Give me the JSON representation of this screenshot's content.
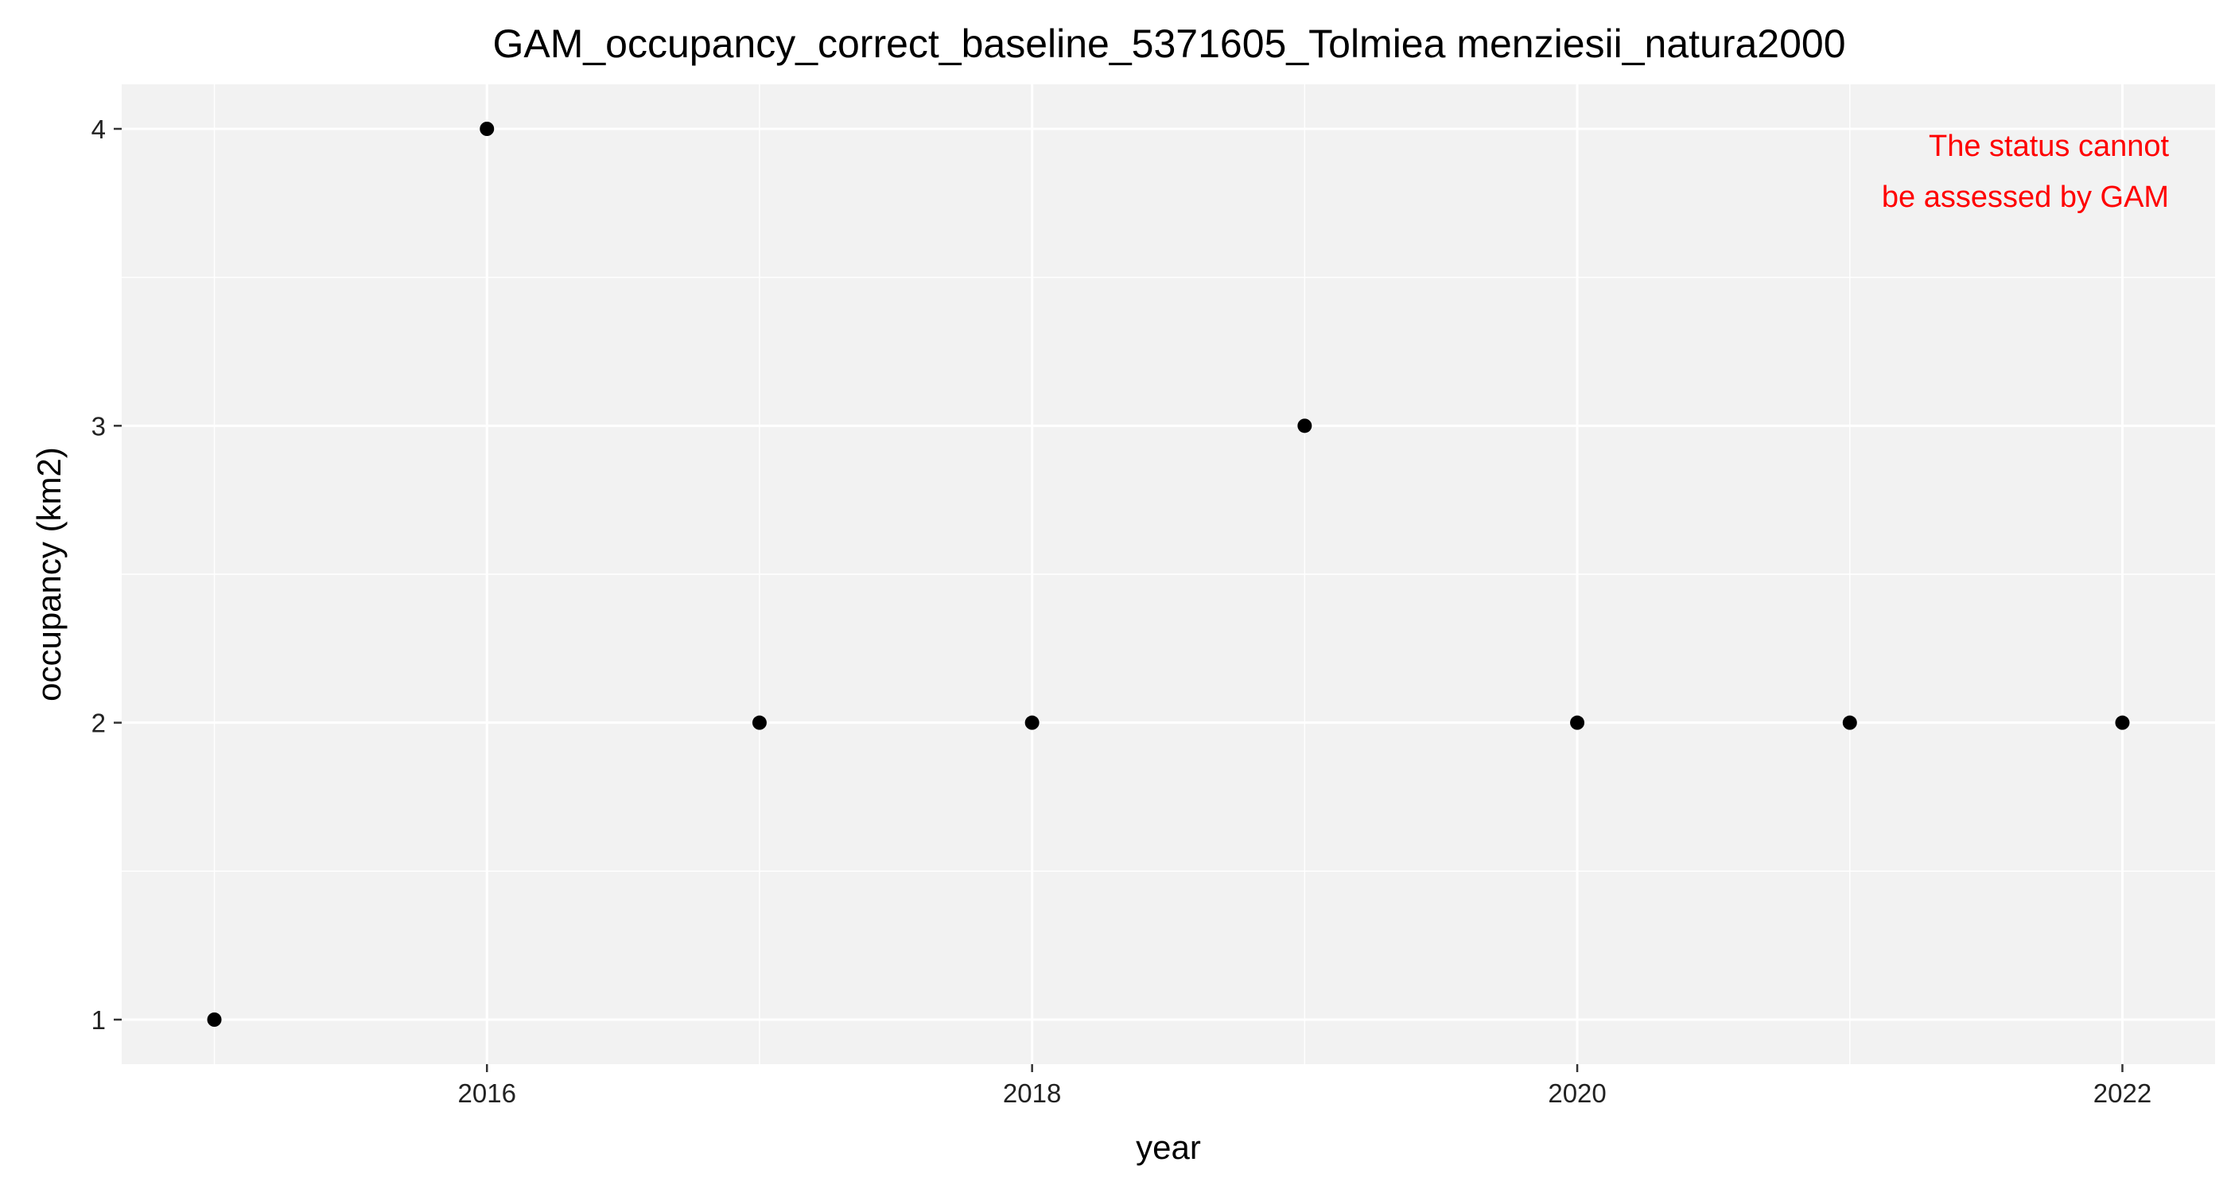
{
  "chart_data": {
    "type": "scatter",
    "title": "GAM_occupancy_correct_baseline_5371605_Tolmiea menziesii_natura2000",
    "xlabel": "year",
    "ylabel": "occupancy (km2)",
    "x": [
      2015,
      2016,
      2017,
      2018,
      2019,
      2020,
      2021,
      2022
    ],
    "y": [
      1,
      4,
      2,
      2,
      3,
      2,
      2,
      2
    ],
    "xlim": [
      2014.66,
      2022.34
    ],
    "ylim": [
      0.85,
      4.15
    ],
    "x_ticks": [
      2016,
      2018,
      2020,
      2022
    ],
    "y_ticks": [
      1,
      2,
      3,
      4
    ],
    "grid": true,
    "annotation": {
      "lines": [
        "The status cannot",
        "be assessed by GAM"
      ],
      "color": "#ff0000"
    },
    "colors": {
      "panel_background": "#f2f2f2",
      "grid": "#ffffff",
      "point": "#000000"
    }
  }
}
